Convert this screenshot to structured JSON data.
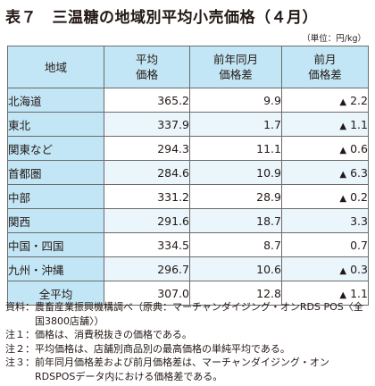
{
  "title": "表７　三温糖の地域別平均小売価格（４月）",
  "unit": "（単位：円/kg）",
  "headers": {
    "region": "地域",
    "avg_price": [
      "平均",
      "価格"
    ],
    "yoy_diff": [
      "前年同月",
      "価格差"
    ],
    "mom_diff": [
      "前月",
      "価格差"
    ]
  },
  "rows": [
    {
      "region": "北海道",
      "avg_price": "365.2",
      "yoy_diff": "9.9",
      "mom_mark": "▲",
      "mom_diff": "2.2"
    },
    {
      "region": "東北",
      "avg_price": "337.9",
      "yoy_diff": "1.7",
      "mom_mark": "▲",
      "mom_diff": "1.1"
    },
    {
      "region": "関東など",
      "avg_price": "294.3",
      "yoy_diff": "11.1",
      "mom_mark": "▲",
      "mom_diff": "0.6"
    },
    {
      "region": "首都圏",
      "avg_price": "284.6",
      "yoy_diff": "10.9",
      "mom_mark": "▲",
      "mom_diff": "6.3"
    },
    {
      "region": "中部",
      "avg_price": "331.2",
      "yoy_diff": "28.9",
      "mom_mark": "▲",
      "mom_diff": "0.2"
    },
    {
      "region": "関西",
      "avg_price": "291.6",
      "yoy_diff": "18.7",
      "mom_mark": "",
      "mom_diff": "3.3"
    },
    {
      "region": "中国・四国",
      "avg_price": "334.5",
      "yoy_diff": "8.7",
      "mom_mark": "",
      "mom_diff": "0.7"
    },
    {
      "region": "九州・沖縄",
      "avg_price": "296.7",
      "yoy_diff": "10.6",
      "mom_mark": "▲",
      "mom_diff": "0.3"
    }
  ],
  "total": {
    "region": "全平均",
    "avg_price": "307.0",
    "yoy_diff": "12.8",
    "mom_mark": "▲",
    "mom_diff": "1.1"
  },
  "notes": [
    {
      "label": "資料：",
      "text": "農畜産業振興機構調べ（原典：マーチャンダイジング・オンRDS POS〈全国3800店舗〉）"
    },
    {
      "label": "注１：",
      "text": "価格は、消費税抜きの価格である。"
    },
    {
      "label": "注２：",
      "text": "平均価格は、店舗別商品別の最高価格の単純平均である。"
    },
    {
      "label": "注３：",
      "text": "前年同月価格差および前月価格差は、マーチャンダイジング・オンRDSPOSデータ内における価格差である。"
    }
  ]
}
